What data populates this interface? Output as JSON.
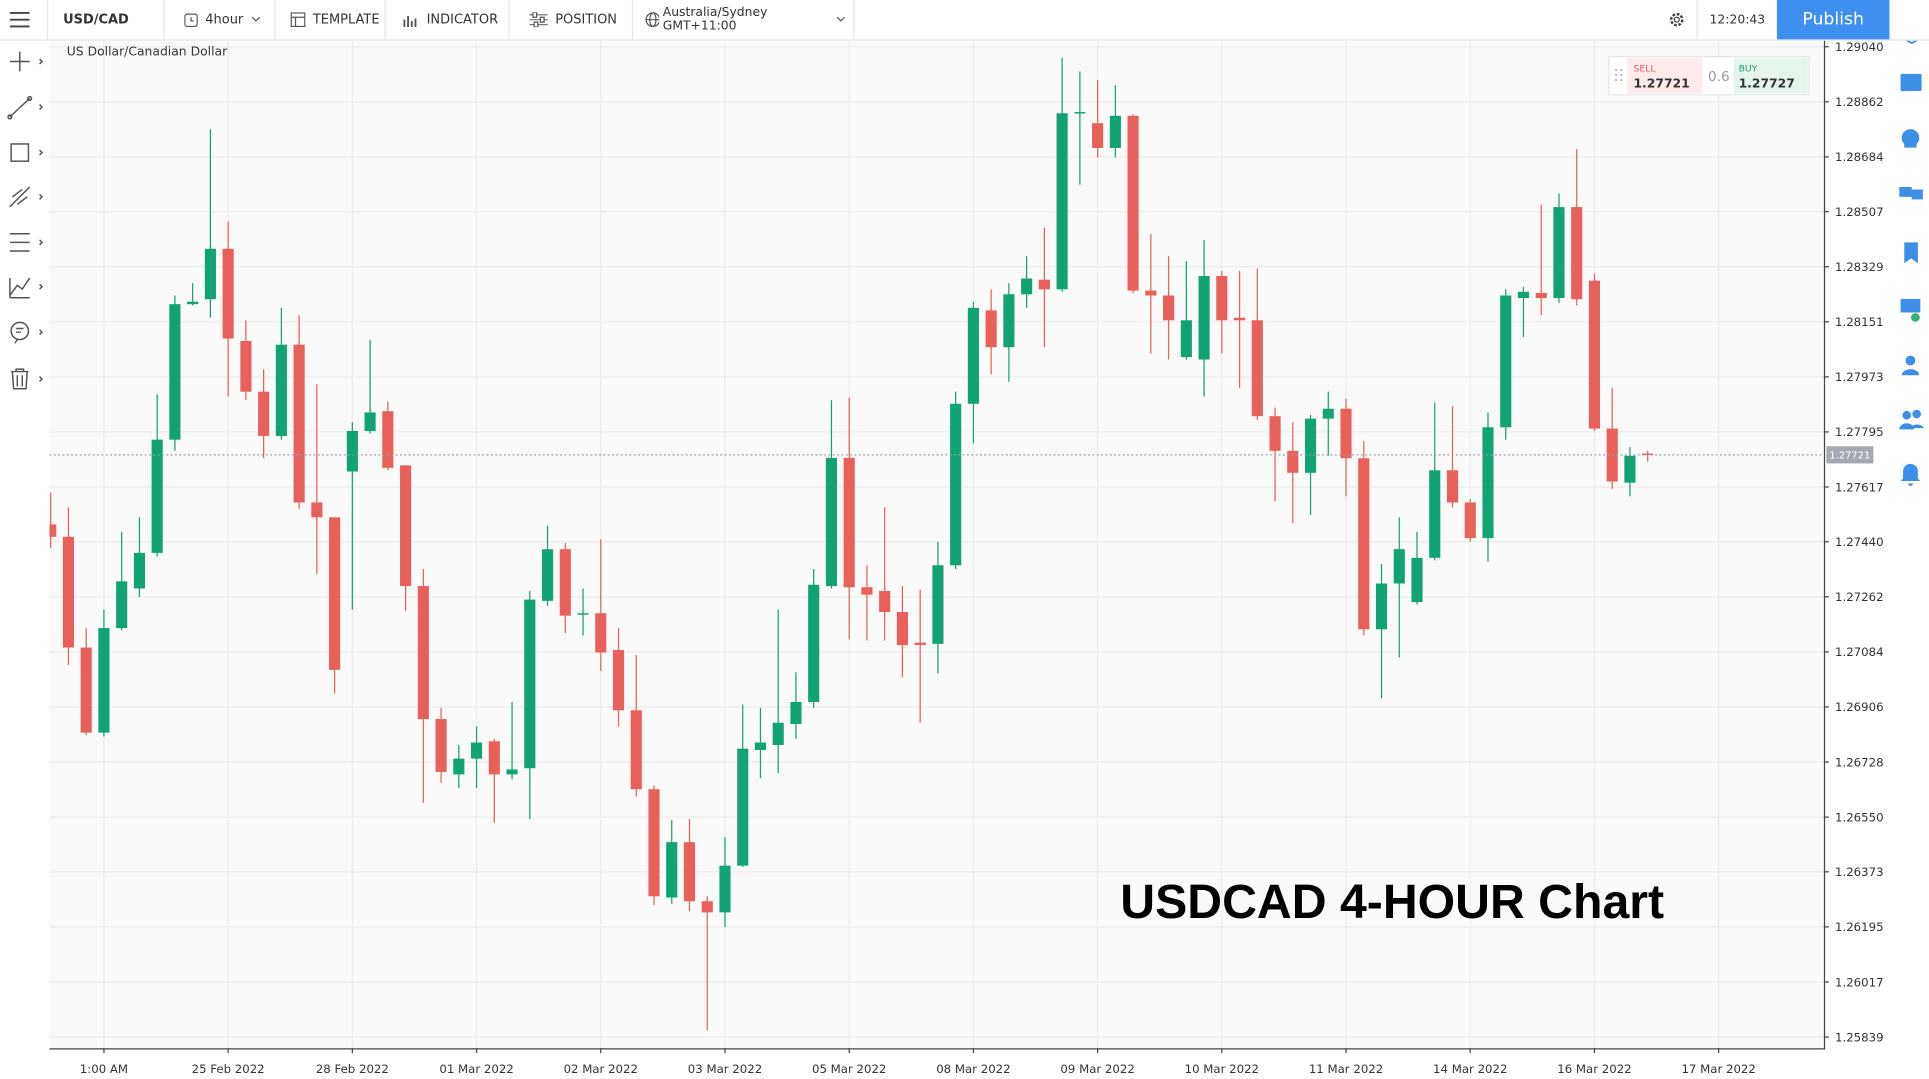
{
  "toolbar": {
    "symbol": "USD/CAD",
    "interval": "4hour",
    "template": "TEMPLATE",
    "indicator": "INDICATOR",
    "position": "POSITION",
    "timezone": "Australia/Sydney GMT+11:00",
    "time": "12:20:43",
    "publish": "Publish"
  },
  "quote": {
    "sell_label": "SELL",
    "sell": 1.27721,
    "spread": 0.6,
    "buy_label": "BUY",
    "buy": 1.27727
  },
  "chart_data": {
    "type": "candlestick",
    "title": "US Dollar/Canadian Dollar",
    "annotation": "USDCAD 4-HOUR Chart",
    "x_tick_labels": [
      "1:00 AM",
      "25 Feb 2022",
      "28 Feb 2022",
      "01 Mar 2022",
      "02 Mar 2022",
      "03 Mar 2022",
      "05 Mar 2022",
      "08 Mar 2022",
      "09 Mar 2022",
      "10 Mar 2022",
      "11 Mar 2022",
      "14 Mar 2022",
      "16 Mar 2022",
      "17 Mar 2022"
    ],
    "open": [
      1.27496,
      1.27456,
      1.27098,
      1.26823,
      1.27161,
      1.27289,
      1.27404,
      1.2777,
      1.28208,
      1.28224,
      1.28387,
      1.28089,
      1.27925,
      1.27782,
      1.28077,
      1.27567,
      1.27519,
      1.27667,
      1.27798,
      1.27862,
      1.27687,
      1.27297,
      1.26867,
      1.26688,
      1.26739,
      1.26795,
      1.26688,
      1.26708,
      1.27249,
      1.27416,
      1.27205,
      1.27209,
      1.2709,
      1.26895,
      1.2664,
      1.2629,
      1.26469,
      1.26278,
      1.26242,
      1.26393,
      1.26767,
      1.26783,
      1.26851,
      1.26922,
      1.27297,
      1.27711,
      1.27293,
      1.27281,
      1.27213,
      1.27114,
      1.2711,
      1.27364,
      1.27886,
      1.28188,
      1.28069,
      1.2824,
      1.28287,
      1.28256,
      1.28825,
      1.28793,
      1.28713,
      1.28817,
      1.28252,
      1.28236,
      1.28037,
      1.28029,
      1.28299,
      1.28164,
      1.28156,
      1.27846,
      1.27734,
      1.27663,
      1.27838,
      1.2787,
      1.2771,
      1.27157,
      1.27305,
      1.27245,
      1.27388,
      1.27671,
      1.27567,
      1.27452,
      1.2781,
      1.28228,
      1.28244,
      1.28228,
      1.28522,
      1.28284,
      1.27806,
      1.27631,
      1.27725
    ],
    "high": [
      1.27599,
      1.27551,
      1.27161,
      1.27221,
      1.27472,
      1.27519,
      1.27917,
      1.28236,
      1.28276,
      1.28773,
      1.28475,
      1.28156,
      1.27997,
      1.28196,
      1.28172,
      1.27949,
      1.27519,
      1.27826,
      1.28093,
      1.27894,
      1.27687,
      1.27352,
      1.26903,
      1.26783,
      1.26843,
      1.26803,
      1.26922,
      1.27281,
      1.27492,
      1.27436,
      1.27289,
      1.27448,
      1.27161,
      1.27074,
      1.26652,
      1.2654,
      1.26544,
      1.26294,
      1.26485,
      1.26914,
      1.26903,
      1.27221,
      1.27018,
      1.27352,
      1.27898,
      1.27906,
      1.27364,
      1.27551,
      1.27297,
      1.27285,
      1.2744,
      1.27925,
      1.28216,
      1.28256,
      1.28276,
      1.28363,
      1.28455,
      1.29004,
      1.2896,
      1.28932,
      1.28916,
      1.28821,
      1.28435,
      1.28363,
      1.28347,
      1.28415,
      1.28315,
      1.28315,
      1.28323,
      1.27874,
      1.27826,
      1.2785,
      1.27925,
      1.27902,
      1.27766,
      1.27368,
      1.27519,
      1.27472,
      1.2789,
      1.27878,
      1.27579,
      1.27858,
      1.28256,
      1.28264,
      1.2853,
      1.28566,
      1.28709,
      1.28307,
      1.27937,
      1.27746,
      1.27734
    ],
    "low": [
      1.2742,
      1.27042,
      1.26815,
      1.26811,
      1.27153,
      1.27261,
      1.27392,
      1.27734,
      1.28204,
      1.28164,
      1.27909,
      1.27898,
      1.2771,
      1.2777,
      1.27547,
      1.27336,
      1.2695,
      1.27221,
      1.2779,
      1.27671,
      1.27217,
      1.26596,
      1.2666,
      1.26644,
      1.26644,
      1.26532,
      1.26672,
      1.26544,
      1.27233,
      1.27145,
      1.27137,
      1.27022,
      1.26843,
      1.26616,
      1.26266,
      1.2627,
      1.26246,
      1.2586,
      1.26194,
      1.26389,
      1.26676,
      1.26692,
      1.26803,
      1.26903,
      1.27289,
      1.27125,
      1.27121,
      1.27121,
      1.27002,
      1.26855,
      1.27014,
      1.27352,
      1.27758,
      1.27981,
      1.27957,
      1.28196,
      1.28069,
      1.28248,
      1.28594,
      1.28682,
      1.28682,
      1.28244,
      1.28049,
      1.28029,
      1.28029,
      1.27909,
      1.28049,
      1.27937,
      1.27834,
      1.27571,
      1.275,
      1.27527,
      1.27718,
      1.27587,
      1.27137,
      1.26934,
      1.27066,
      1.27237,
      1.2738,
      1.27551,
      1.2744,
      1.27376,
      1.2777,
      1.28101,
      1.28172,
      1.28212,
      1.28204,
      1.27798,
      1.27611,
      1.27587,
      1.27699
    ],
    "close": [
      1.27456,
      1.27098,
      1.26823,
      1.27161,
      1.27312,
      1.27404,
      1.2777,
      1.28208,
      1.28216,
      1.28387,
      1.28097,
      1.27925,
      1.27782,
      1.28077,
      1.27567,
      1.27519,
      1.27026,
      1.27798,
      1.27858,
      1.27679,
      1.27297,
      1.26867,
      1.26696,
      1.26739,
      1.26791,
      1.26688,
      1.26704,
      1.27253,
      1.27416,
      1.27201,
      1.27209,
      1.27082,
      1.26895,
      1.2664,
      1.26294,
      1.26469,
      1.26278,
      1.26242,
      1.26393,
      1.26771,
      1.26791,
      1.26855,
      1.26922,
      1.27301,
      1.27711,
      1.27293,
      1.27269,
      1.27213,
      1.27106,
      1.27106,
      1.27364,
      1.27886,
      1.28196,
      1.28069,
      1.2824,
      1.28291,
      1.28256,
      1.28825,
      1.28829,
      1.28713,
      1.28817,
      1.28252,
      1.28236,
      1.28156,
      1.28156,
      1.28299,
      1.28156,
      1.28156,
      1.27846,
      1.27734,
      1.27663,
      1.27838,
      1.2787,
      1.2771,
      1.27157,
      1.27305,
      1.27416,
      1.27388,
      1.27671,
      1.27567,
      1.27452,
      1.2781,
      1.28236,
      1.28248,
      1.28228,
      1.28522,
      1.28224,
      1.27806,
      1.27635,
      1.27718,
      1.27721
    ],
    "up_color": "#12a374",
    "down_color": "#e8605a",
    "last_price": 1.27721,
    "ylim": [
      1.258,
      1.2906
    ],
    "yticks": [
      {
        "value": 1.2904,
        "label": "1.29040"
      },
      1.28862,
      1.28684,
      1.28507,
      1.28329,
      1.28151,
      1.27973,
      1.27795,
      1.27617,
      {
        "value": 1.2744,
        "label": "1.27440"
      },
      1.27262,
      1.27084,
      1.26906,
      1.26728,
      {
        "value": 1.2655,
        "label": "1.26550"
      },
      1.26373,
      1.26195,
      1.26017,
      1.25839
    ],
    "grid": true
  }
}
